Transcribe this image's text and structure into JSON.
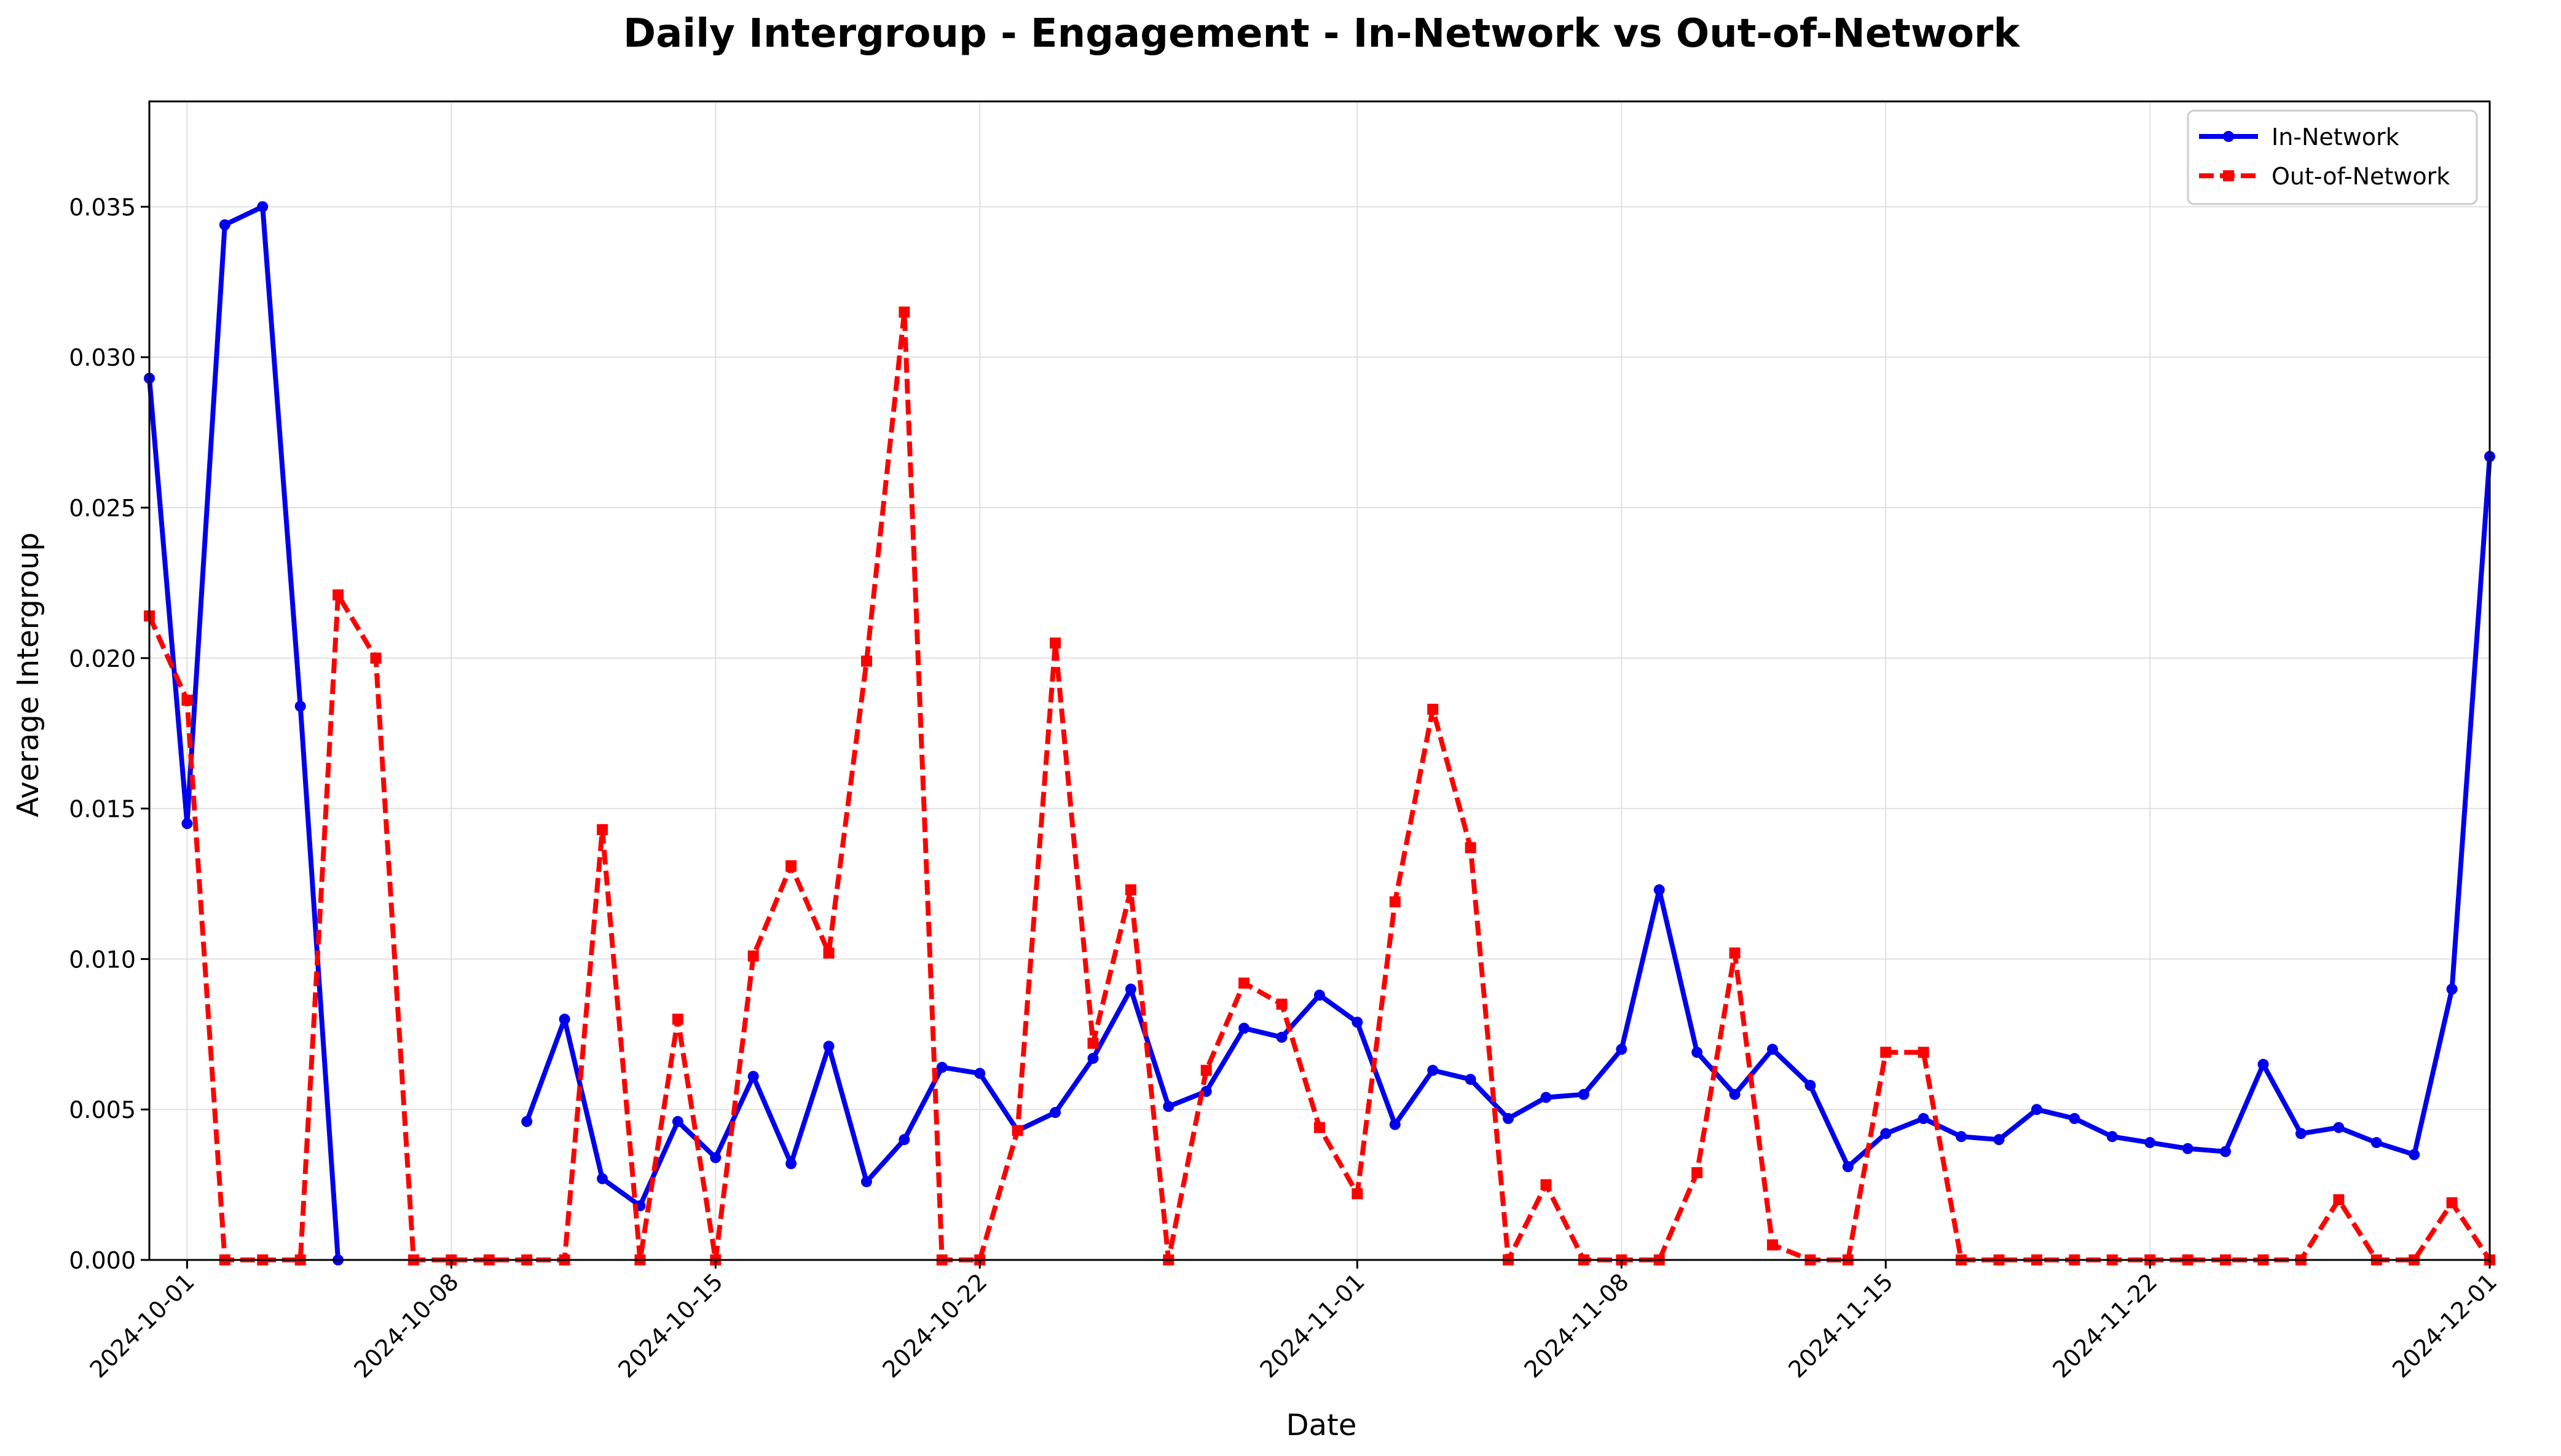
{
  "chart_data": {
    "type": "line",
    "title": "Daily Intergroup - Engagement - In-Network vs Out-of-Network",
    "xlabel": "Date",
    "ylabel": "Average Intergroup",
    "x_start": "2024-09-30",
    "x_end": "2024-12-01",
    "xlim": [
      0,
      62
    ],
    "ylim": [
      0,
      0.0385
    ],
    "grid": true,
    "legend_position": "top-right",
    "x_ticks": [
      {
        "day": 1,
        "label": "2024-10-01"
      },
      {
        "day": 8,
        "label": "2024-10-08"
      },
      {
        "day": 15,
        "label": "2024-10-15"
      },
      {
        "day": 22,
        "label": "2024-10-22"
      },
      {
        "day": 32,
        "label": "2024-11-01"
      },
      {
        "day": 39,
        "label": "2024-11-08"
      },
      {
        "day": 46,
        "label": "2024-11-15"
      },
      {
        "day": 53,
        "label": "2024-11-22"
      },
      {
        "day": 62,
        "label": "2024-12-01"
      }
    ],
    "y_ticks": [
      {
        "value": 0.0,
        "label": "0.000"
      },
      {
        "value": 0.005,
        "label": "0.005"
      },
      {
        "value": 0.01,
        "label": "0.010"
      },
      {
        "value": 0.015,
        "label": "0.015"
      },
      {
        "value": 0.02,
        "label": "0.020"
      },
      {
        "value": 0.025,
        "label": "0.025"
      },
      {
        "value": 0.03,
        "label": "0.030"
      },
      {
        "value": 0.035,
        "label": "0.035"
      }
    ],
    "series": [
      {
        "name": "In-Network",
        "color": "#0000ee",
        "style": "solid",
        "marker": "circle",
        "points": [
          [
            0,
            0.0293
          ],
          [
            1,
            0.0145
          ],
          [
            2,
            0.0344
          ],
          [
            3,
            0.035
          ],
          [
            4,
            0.0184
          ],
          [
            5,
            0.0
          ],
          null,
          [
            10,
            0.0046
          ],
          [
            11,
            0.008
          ],
          [
            12,
            0.0027
          ],
          [
            13,
            0.0018
          ],
          [
            14,
            0.0046
          ],
          [
            15,
            0.0034
          ],
          [
            16,
            0.0061
          ],
          [
            17,
            0.0032
          ],
          [
            18,
            0.0071
          ],
          [
            19,
            0.0026
          ],
          [
            20,
            0.004
          ],
          [
            21,
            0.0064
          ],
          [
            22,
            0.0062
          ],
          [
            23,
            0.0043
          ],
          [
            24,
            0.0049
          ],
          [
            25,
            0.0067
          ],
          [
            26,
            0.009
          ],
          [
            27,
            0.0051
          ],
          [
            28,
            0.0056
          ],
          [
            29,
            0.0077
          ],
          [
            30,
            0.0074
          ],
          [
            31,
            0.0088
          ],
          [
            32,
            0.0079
          ],
          [
            33,
            0.0045
          ],
          [
            34,
            0.0063
          ],
          [
            35,
            0.006
          ],
          [
            36,
            0.0047
          ],
          [
            37,
            0.0054
          ],
          [
            38,
            0.0055
          ],
          [
            39,
            0.007
          ],
          [
            40,
            0.0123
          ],
          [
            41,
            0.0069
          ],
          [
            42,
            0.0055
          ],
          [
            43,
            0.007
          ],
          [
            44,
            0.0058
          ],
          [
            45,
            0.0031
          ],
          [
            46,
            0.0042
          ],
          [
            47,
            0.0047
          ],
          [
            48,
            0.0041
          ],
          [
            49,
            0.004
          ],
          [
            50,
            0.005
          ],
          [
            51,
            0.0047
          ],
          [
            52,
            0.0041
          ],
          [
            53,
            0.0039
          ],
          [
            54,
            0.0037
          ],
          [
            55,
            0.0036
          ],
          [
            56,
            0.0065
          ],
          [
            57,
            0.0042
          ],
          [
            58,
            0.0044
          ],
          [
            59,
            0.0039
          ],
          [
            60,
            0.0035
          ],
          [
            61,
            0.009
          ],
          [
            62,
            0.0267
          ]
        ]
      },
      {
        "name": "Out-of-Network",
        "color": "#ff0000",
        "style": "dashed",
        "marker": "square",
        "points": [
          [
            0,
            0.0214
          ],
          [
            1,
            0.0186
          ],
          [
            2,
            0.0
          ],
          [
            3,
            0.0
          ],
          [
            4,
            0.0
          ],
          [
            5,
            0.0221
          ],
          [
            6,
            0.02
          ],
          [
            7,
            0.0
          ],
          [
            8,
            0.0
          ],
          [
            9,
            0.0
          ],
          [
            10,
            0.0
          ],
          [
            11,
            0.0
          ],
          [
            12,
            0.0143
          ],
          [
            13,
            0.0
          ],
          [
            14,
            0.008
          ],
          [
            15,
            0.0
          ],
          [
            16,
            0.0101
          ],
          [
            17,
            0.0131
          ],
          [
            18,
            0.0102
          ],
          [
            19,
            0.0199
          ],
          [
            20,
            0.0315
          ],
          [
            21,
            0.0
          ],
          [
            22,
            0.0
          ],
          [
            23,
            0.0043
          ],
          [
            24,
            0.0205
          ],
          [
            25,
            0.0072
          ],
          [
            26,
            0.0123
          ],
          [
            27,
            0.0
          ],
          [
            28,
            0.0063
          ],
          [
            29,
            0.0092
          ],
          [
            30,
            0.0085
          ],
          [
            31,
            0.0044
          ],
          [
            32,
            0.0022
          ],
          [
            33,
            0.0119
          ],
          [
            34,
            0.0183
          ],
          [
            35,
            0.0137
          ],
          [
            36,
            0.0
          ],
          [
            37,
            0.0025
          ],
          [
            38,
            0.0
          ],
          [
            39,
            0.0
          ],
          [
            40,
            0.0
          ],
          [
            41,
            0.0029
          ],
          [
            42,
            0.0102
          ],
          [
            43,
            0.0005
          ],
          [
            44,
            0.0
          ],
          [
            45,
            0.0
          ],
          [
            46,
            0.0069
          ],
          [
            47,
            0.0069
          ],
          [
            48,
            0.0
          ],
          [
            49,
            0.0
          ],
          [
            50,
            0.0
          ],
          [
            51,
            0.0
          ],
          [
            52,
            0.0
          ],
          [
            53,
            0.0
          ],
          [
            54,
            0.0
          ],
          [
            55,
            0.0
          ],
          [
            56,
            0.0
          ],
          [
            57,
            0.0
          ],
          [
            58,
            0.002
          ],
          [
            59,
            0.0
          ],
          [
            60,
            0.0
          ],
          [
            61,
            0.0019
          ],
          [
            62,
            0.0
          ]
        ]
      }
    ]
  }
}
